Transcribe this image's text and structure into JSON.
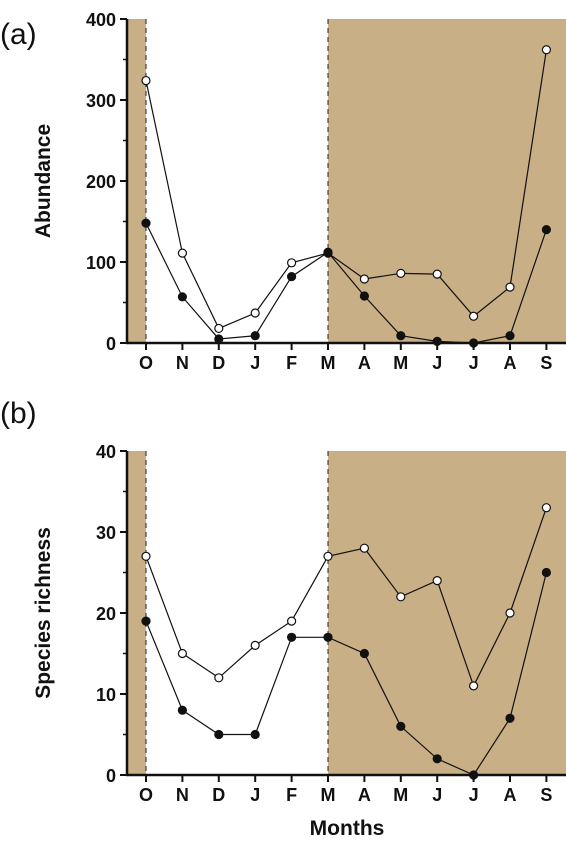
{
  "shade_color": "#C9AF86",
  "marker_open_color": "#ffffff",
  "marker_filled_color": "#111111",
  "line_color": "#111111",
  "xlabel": "Months",
  "chart_data": [
    {
      "type": "line",
      "panel_label": "(a)",
      "title": "",
      "xlabel": "",
      "ylabel": "Abundance",
      "categories": [
        "O",
        "N",
        "D",
        "J",
        "F",
        "M",
        "A",
        "M",
        "J",
        "J",
        "A",
        "S"
      ],
      "ylim": [
        0,
        400
      ],
      "yticks": [
        0,
        100,
        200,
        300,
        400
      ],
      "shaded_categories": [
        "O",
        "A",
        "M",
        "J",
        "J",
        "A",
        "S"
      ],
      "series": [
        {
          "marker": "open",
          "values": [
            324,
            111,
            18,
            37,
            99,
            111,
            79,
            86,
            85,
            33,
            69,
            362
          ]
        },
        {
          "marker": "filled",
          "values": [
            148,
            57,
            5,
            9,
            82,
            112,
            58,
            9,
            2,
            0,
            9,
            140
          ]
        }
      ]
    },
    {
      "type": "line",
      "panel_label": "(b)",
      "title": "",
      "xlabel": "Months",
      "ylabel": "Species richness",
      "categories": [
        "O",
        "N",
        "D",
        "J",
        "F",
        "M",
        "A",
        "M",
        "J",
        "J",
        "A",
        "S"
      ],
      "ylim": [
        0,
        40
      ],
      "yticks": [
        0,
        10,
        20,
        30,
        40
      ],
      "shaded_categories": [
        "O",
        "A",
        "M",
        "J",
        "J",
        "A",
        "S"
      ],
      "series": [
        {
          "marker": "open",
          "values": [
            27,
            15,
            12,
            16,
            19,
            27,
            28,
            22,
            24,
            11,
            20,
            33
          ]
        },
        {
          "marker": "filled",
          "values": [
            19,
            8,
            5,
            5,
            17,
            17,
            15,
            6,
            2,
            0,
            7,
            25
          ]
        }
      ]
    }
  ]
}
